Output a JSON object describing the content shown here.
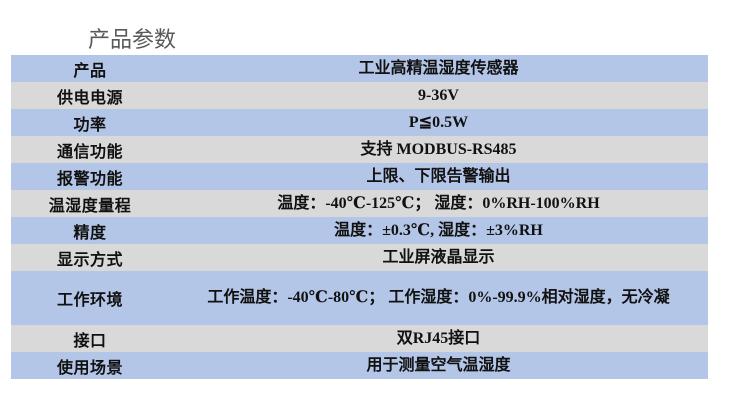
{
  "title": "产品参数",
  "colors": {
    "row_blue": "#b4c6e7",
    "row_gray": "#d9d9d9",
    "title": "#595959"
  },
  "rows": [
    {
      "label": "产品",
      "value": "工业高精温湿度传感器"
    },
    {
      "label": "供电电源",
      "value": "9-36V"
    },
    {
      "label": "功率",
      "value": "P≦0.5W"
    },
    {
      "label": "通信功能",
      "value": "支持 MODBUS-RS485"
    },
    {
      "label": "报警功能",
      "value": "上限、下限告警输出"
    },
    {
      "label": "温湿度量程",
      "value": "温度：-40℃-125℃； 湿度：0%RH-100%RH"
    },
    {
      "label": "精度",
      "value": "温度：±0.3℃, 湿度：±3%RH"
    },
    {
      "label": "显示方式",
      "value": "工业屏液晶显示"
    },
    {
      "label": "工作环境",
      "value": "工作温度：-40℃-80℃； 工作湿度：0%-99.9%相对湿度，无冷凝"
    },
    {
      "label": "接口",
      "value": "双RJ45接口"
    },
    {
      "label": "使用场景",
      "value": "用于测量空气温湿度"
    }
  ]
}
